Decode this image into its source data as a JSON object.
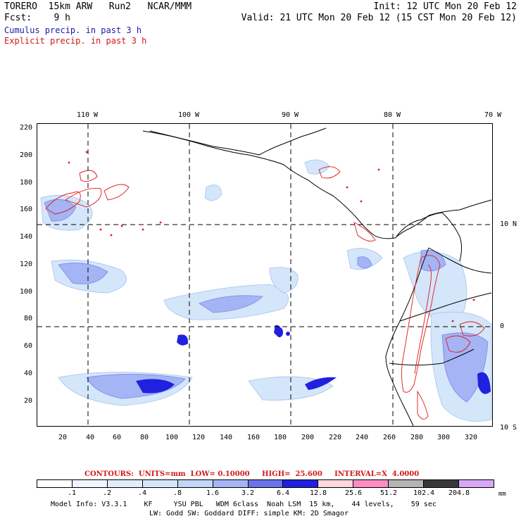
{
  "header": {
    "model": "TORERO  15km ARW   Run2   NCAR/MMM",
    "init": "Init: 12 UTC Mon 20 Feb 12",
    "fcst": "Fcst:    9 h",
    "valid": "Valid: 21 UTC Mon 20 Feb 12 (15 CST Mon 20 Feb 12)",
    "cumulus": "Cumulus precip. in past 3 h",
    "explicit": "Explicit precip. in past 3 h"
  },
  "map": {
    "lon_labels": [
      "110 W",
      "100 W",
      "90 W",
      "80 W",
      "70 W"
    ],
    "lat_labels": [
      "10 N",
      "0",
      "10 S"
    ],
    "y_ticks": [
      "220",
      "200",
      "180",
      "160",
      "140",
      "120",
      "100",
      "80",
      "60",
      "40",
      "20"
    ],
    "x_ticks": [
      "20",
      "40",
      "60",
      "80",
      "100",
      "120",
      "140",
      "160",
      "180",
      "200",
      "220",
      "240",
      "260",
      "280",
      "300",
      "320"
    ]
  },
  "contour_info": "CONTOURS:  UNITS=mm  LOW= 0.10000     HIGH=  25.600     INTERVAL=X  4.0000",
  "colorbar": {
    "labels": [
      ".1",
      ".2",
      ".4",
      ".8",
      "1.6",
      "3.2",
      "6.4",
      "12.8",
      "25.6",
      "51.2",
      "102.4",
      "204.8"
    ],
    "unit": "mm",
    "colors": [
      "#ffffff",
      "#f0f4ff",
      "#e2ecfb",
      "#d4e6fa",
      "#c2d6f8",
      "#a4b4f4",
      "#6a72ec",
      "#2020e0",
      "#ffd8dc",
      "#ff8cc0",
      "#b4b4b4",
      "#383838",
      "#d8a8f8"
    ]
  },
  "footer": {
    "line1": "Model Info: V3.3.1    KF     YSU PBL   WDM 6class  Noah LSM  15 km,    44 levels,    59 sec",
    "line2": "LW: Godd SW: Goddard DIFF: simple KM: 2D Smagor"
  },
  "colors": {
    "cumulus": "#1a1aa8",
    "explicit": "#d01818",
    "precip_light": "#c2d6f8",
    "precip_mid": "#6a72ec",
    "precip_heavy": "#2020e0"
  }
}
